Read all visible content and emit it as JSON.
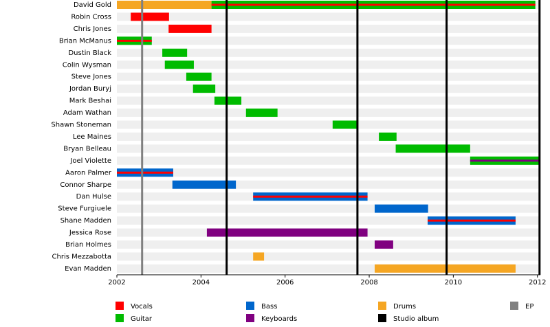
{
  "chart_data": {
    "type": "timeline",
    "legend": [
      {
        "name": "Vocals",
        "color": "#ff0000"
      },
      {
        "name": "Guitar",
        "color": "#00bb00"
      },
      {
        "name": "Bass",
        "color": "#0066cc"
      },
      {
        "name": "Keyboards",
        "color": "#800080"
      },
      {
        "name": "Drums",
        "color": "#f5a623"
      },
      {
        "name": "Studio album",
        "color": "#000000"
      },
      {
        "name": "EP",
        "color": "#808080"
      }
    ],
    "members": [
      {
        "name": "David Gold",
        "spans": [
          {
            "role": 4,
            "start": 2002,
            "end": 2004.25
          },
          {
            "role": 1,
            "stripe": 0,
            "start": 2004.25,
            "end": 2011.95
          }
        ]
      },
      {
        "name": "Robin Cross",
        "spans": [
          {
            "role": 0,
            "start": 2002.33,
            "end": 2003.24
          }
        ]
      },
      {
        "name": "Chris Jones",
        "spans": [
          {
            "role": 0,
            "start": 2003.23,
            "end": 2004.25
          }
        ]
      },
      {
        "name": "Brian McManus",
        "spans": [
          {
            "role": 1,
            "stripe": 0,
            "start": 2002,
            "end": 2002.83
          }
        ]
      },
      {
        "name": "Dustin Black",
        "spans": [
          {
            "role": 1,
            "start": 2003.08,
            "end": 2003.67
          }
        ]
      },
      {
        "name": "Colin Wysman",
        "spans": [
          {
            "role": 1,
            "start": 2003.14,
            "end": 2003.83
          }
        ]
      },
      {
        "name": "Steve Jones",
        "spans": [
          {
            "role": 1,
            "start": 2003.65,
            "end": 2004.25
          }
        ]
      },
      {
        "name": "Jordan Buryj",
        "spans": [
          {
            "role": 1,
            "start": 2003.81,
            "end": 2004.34
          }
        ]
      },
      {
        "name": "Mark Beshai",
        "spans": [
          {
            "role": 1,
            "start": 2004.32,
            "end": 2004.96
          }
        ]
      },
      {
        "name": "Adam Wathan",
        "spans": [
          {
            "role": 1,
            "start": 2005.07,
            "end": 2005.82
          }
        ]
      },
      {
        "name": "Shawn Stoneman",
        "spans": [
          {
            "role": 1,
            "start": 2007.13,
            "end": 2007.74
          }
        ]
      },
      {
        "name": "Lee Maines",
        "spans": [
          {
            "role": 1,
            "start": 2008.23,
            "end": 2008.65
          }
        ]
      },
      {
        "name": "Bryan Belleau",
        "spans": [
          {
            "role": 1,
            "start": 2008.63,
            "end": 2010.4
          }
        ]
      },
      {
        "name": "Joel Violette",
        "spans": [
          {
            "role": 1,
            "stripe": 3,
            "start": 2010.4,
            "end": 2012.07
          }
        ]
      },
      {
        "name": "Aaron Palmer",
        "spans": [
          {
            "role": 2,
            "stripe": 0,
            "start": 2002,
            "end": 2003.34
          }
        ]
      },
      {
        "name": "Connor Sharpe",
        "spans": [
          {
            "role": 2,
            "start": 2003.32,
            "end": 2004.83
          }
        ]
      },
      {
        "name": "Dan Hulse",
        "spans": [
          {
            "role": 2,
            "stripe": 0,
            "start": 2005.24,
            "end": 2007.96
          }
        ]
      },
      {
        "name": "Steve Furgiuele",
        "spans": [
          {
            "role": 2,
            "start": 2008.13,
            "end": 2009.4
          }
        ]
      },
      {
        "name": "Shane Madden",
        "spans": [
          {
            "role": 2,
            "stripe": 0,
            "start": 2009.39,
            "end": 2011.48
          }
        ]
      },
      {
        "name": "Jessica Rose",
        "spans": [
          {
            "role": 3,
            "start": 2004.14,
            "end": 2007.96
          }
        ]
      },
      {
        "name": "Brian Holmes",
        "spans": [
          {
            "role": 3,
            "start": 2008.13,
            "end": 2008.57
          }
        ]
      },
      {
        "name": "Chris Mezzabotta",
        "spans": [
          {
            "role": 4,
            "start": 2005.24,
            "end": 2005.5
          }
        ]
      },
      {
        "name": "Evan Madden",
        "spans": [
          {
            "role": 4,
            "start": 2008.13,
            "end": 2011.48
          }
        ]
      }
    ],
    "events": [
      {
        "role": 6,
        "x": 2002.6
      },
      {
        "role": 5,
        "x": 2004.61
      },
      {
        "role": 5,
        "x": 2007.72
      },
      {
        "role": 5,
        "x": 2009.84
      },
      {
        "role": 5,
        "x": 2012.05
      }
    ],
    "xlim": [
      2002,
      2012.07
    ],
    "xticks": [
      2002,
      2004,
      2006,
      2008,
      2010,
      2012
    ]
  }
}
